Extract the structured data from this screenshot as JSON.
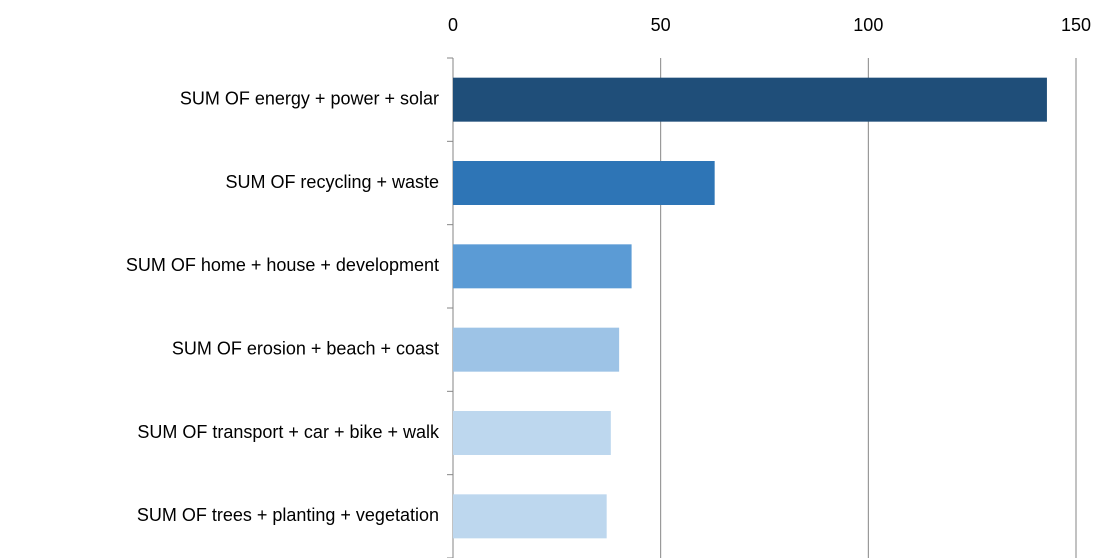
{
  "chart_data": {
    "type": "hbar",
    "categories": [
      "SUM OF energy + power + solar",
      "SUM OF recycling + waste",
      "SUM OF home + house + development",
      "SUM OF erosion + beach + coast",
      "SUM OF transport + car + bike + walk",
      "SUM OF trees + planting + vegetation"
    ],
    "values": [
      143,
      63,
      43,
      40,
      38,
      37
    ],
    "colors": [
      "#1f4e79",
      "#2e75b6",
      "#5b9bd5",
      "#9dc3e6",
      "#bdd7ee",
      "#bdd7ee"
    ],
    "xlim": [
      0,
      150
    ],
    "xticks": [
      0,
      50,
      100,
      150
    ],
    "grid": true
  }
}
